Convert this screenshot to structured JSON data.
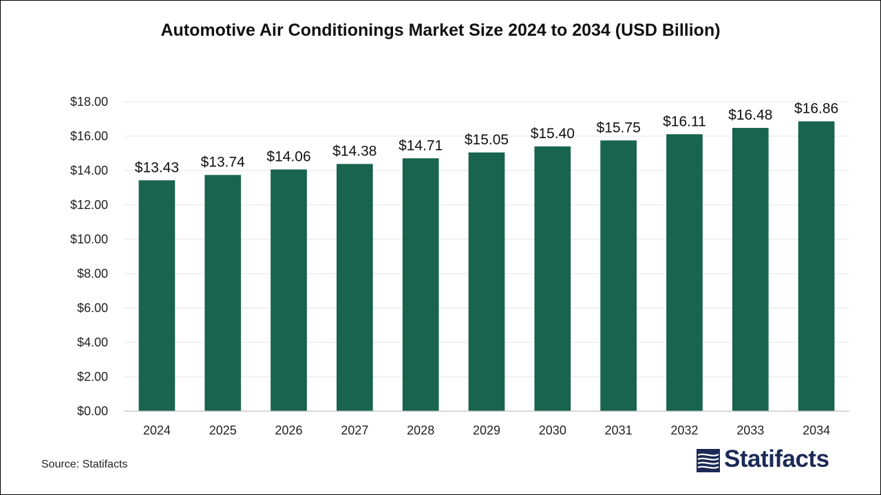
{
  "chart_data": {
    "type": "bar",
    "title": "Automotive Air Conditionings Market Size 2024 to 2034 (USD Billion)",
    "categories": [
      "2024",
      "2025",
      "2026",
      "2027",
      "2028",
      "2029",
      "2030",
      "2031",
      "2032",
      "2033",
      "2034"
    ],
    "values": [
      13.43,
      13.74,
      14.06,
      14.38,
      14.71,
      15.05,
      15.4,
      15.75,
      16.11,
      16.48,
      16.86
    ],
    "value_labels": [
      "$13.43",
      "$13.74",
      "$14.06",
      "$14.38",
      "$14.71",
      "$15.05",
      "$15.40",
      "$15.75",
      "$16.11",
      "$16.48",
      "$16.86"
    ],
    "y_ticks": [
      0,
      2,
      4,
      6,
      8,
      10,
      12,
      14,
      16,
      18
    ],
    "y_tick_labels": [
      "$0.00",
      "$2.00",
      "$4.00",
      "$6.00",
      "$8.00",
      "$10.00",
      "$12.00",
      "$14.00",
      "$16.00",
      "$18.00"
    ],
    "ylim": [
      0,
      18
    ],
    "xlabel": "",
    "ylabel": "",
    "grid": true,
    "legend": "none",
    "bar_color": "#18644f"
  },
  "footer": {
    "source": "Source: Statifacts",
    "logo_text": "Statifacts",
    "logo_color": "#1b2a55"
  }
}
